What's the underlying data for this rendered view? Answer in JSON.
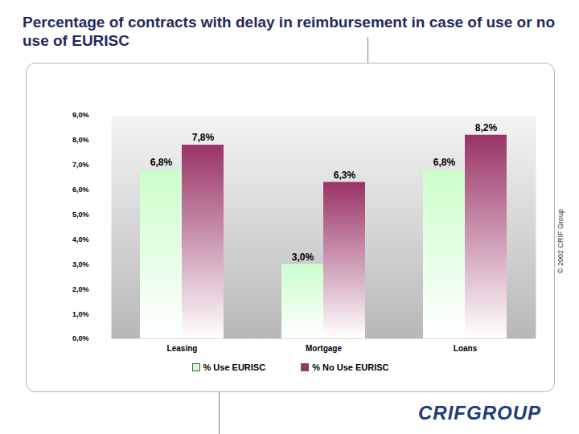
{
  "chart_data": {
    "type": "bar",
    "title": "Percentage of contracts with delay in reimbursement in case of use or no use of EURISC",
    "categories": [
      "Leasing",
      "Mortgage",
      "Loans"
    ],
    "series": [
      {
        "name": "% Use EURISC",
        "color": "#ccffcc",
        "values": [
          6.8,
          3.0,
          6.8
        ],
        "value_labels": [
          "6,8%",
          "3,0%",
          "6,8%"
        ]
      },
      {
        "name": "% No Use EURISC",
        "color": "#993366",
        "values": [
          7.8,
          6.3,
          8.2
        ],
        "value_labels": [
          "7,8%",
          "6,3%",
          "8,2%"
        ]
      }
    ],
    "ylim": [
      0,
      9
    ],
    "yticks": [
      {
        "value": 0,
        "label": "0,0%"
      },
      {
        "value": 1,
        "label": "1,0%"
      },
      {
        "value": 2,
        "label": "2,0%"
      },
      {
        "value": 3,
        "label": "3,0%"
      },
      {
        "value": 4,
        "label": "4,0%"
      },
      {
        "value": 5,
        "label": "5,0%"
      },
      {
        "value": 6,
        "label": "6,0%"
      },
      {
        "value": 7,
        "label": "7,0%"
      },
      {
        "value": 8,
        "label": "8,0%"
      },
      {
        "value": 9,
        "label": "9,0%"
      }
    ],
    "grid": false,
    "legend": "bottom",
    "data_labels": true,
    "annotations": [
      "© 2002 CRIF Group",
      "CRIFGROUP"
    ]
  }
}
